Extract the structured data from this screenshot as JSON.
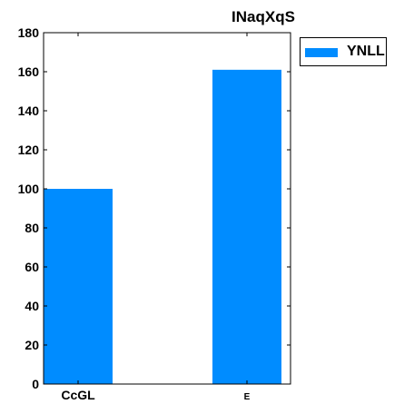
{
  "chart_data": {
    "type": "bar",
    "title": "INaqXqS",
    "categories": [
      "CcGL",
      "E"
    ],
    "series": [
      {
        "name": "YNLL",
        "values": [
          100,
          161
        ],
        "color": "#008cff"
      }
    ],
    "xlabel": "",
    "ylabel": "",
    "ylim": [
      0,
      180
    ],
    "yticks": [
      0,
      20,
      40,
      60,
      80,
      100,
      120,
      140,
      160,
      180
    ],
    "grid": false,
    "legend_position": "outside-top-right"
  }
}
